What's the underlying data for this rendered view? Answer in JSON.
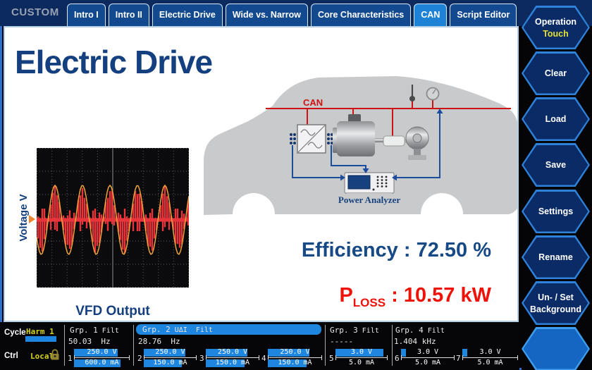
{
  "header": {
    "mode_label": "CUSTOM",
    "tabs": [
      {
        "label": "Intro I"
      },
      {
        "label": "Intro II"
      },
      {
        "label": "Electric Drive"
      },
      {
        "label": "Wide vs. Narrow"
      },
      {
        "label": "Core Characteristics"
      },
      {
        "label": "CAN",
        "selected": true
      },
      {
        "label": "Script Editor"
      }
    ]
  },
  "softkeys": [
    {
      "label": "Operation",
      "sublabel": "Touch"
    },
    {
      "label": "Clear"
    },
    {
      "label": "Load"
    },
    {
      "label": "Save"
    },
    {
      "label": "Settings"
    },
    {
      "label": "Rename"
    },
    {
      "label": "Un- / Set",
      "sublabel": "Background"
    },
    {
      "label": ""
    }
  ],
  "main": {
    "title": "Electric Drive",
    "scope": {
      "ylabel": "Voltage V",
      "caption": "VFD Output"
    },
    "diagram": {
      "can_label": "CAN",
      "analyzer_label": "Power Analyzer"
    },
    "metrics": {
      "efficiency_text": "Efficiency : 72.50 %",
      "ploss": {
        "base": "P",
        "sub": "LOSS",
        "rest": " : 10.57 kW"
      }
    }
  },
  "statusbar": {
    "cycle": {
      "label": "Cycle",
      "value": "Harm 1"
    },
    "ctrl": {
      "label": "Ctrl",
      "value": "Local",
      "lock_icon": "padlock"
    },
    "groups": [
      {
        "name": "Grp. 1",
        "mode": " Filt",
        "freq": "50.03  Hz"
      },
      {
        "name": "Grp. 2",
        "mode": " UΔI  Filt",
        "freq": "28.76  Hz",
        "selected": true
      },
      {
        "name": "Grp. 3",
        "mode": " Filt",
        "freq": "-----"
      },
      {
        "name": "Grp. 4",
        "mode": " Filt",
        "freq": "1.404 kHz"
      }
    ],
    "channels": [
      {
        "num": "1",
        "v": "250.0 V",
        "a": "600.0 mA"
      },
      {
        "num": "2",
        "v": "250.0 V",
        "a": "150.0 mA"
      },
      {
        "num": "3",
        "v": "250.0 V",
        "a": "150.0 mA"
      },
      {
        "num": "4",
        "v": "250.0 V",
        "a": "150.0 mA"
      },
      {
        "num": "5",
        "v": "3.0 V",
        "a": "5.0 mA"
      },
      {
        "num": "6",
        "v": "3.0 V",
        "a": "5.0 mA"
      },
      {
        "num": "7",
        "v": "3.0 V",
        "a": "5.0 mA"
      }
    ]
  }
}
